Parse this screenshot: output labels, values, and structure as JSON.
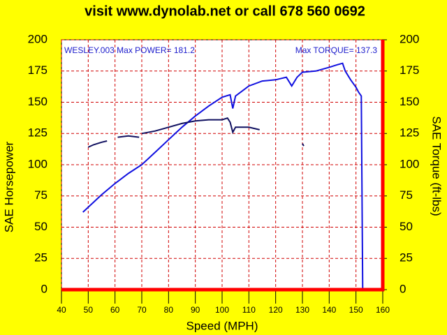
{
  "chart_data": {
    "type": "line",
    "title": "visit www.dynolab.net or call   678 560 0692",
    "annotations": [
      "WESLEY.003  Max POWER= 181.2",
      "Max TORQUE= 137.3"
    ],
    "x_label": "Speed (MPH)",
    "y_label": "SAE Horsepower",
    "y2_label": "SAE Torque (ft-lbs)",
    "xlim": [
      40,
      160
    ],
    "xticks": [
      40,
      50,
      60,
      70,
      80,
      90,
      100,
      110,
      120,
      130,
      140,
      150,
      160
    ],
    "ylim": [
      0,
      200
    ],
    "yticks": [
      0,
      25,
      50,
      75,
      100,
      125,
      150,
      175,
      200
    ],
    "y2lim": [
      0,
      200
    ],
    "y2ticks": [
      0,
      25,
      50,
      75,
      100,
      125,
      150,
      175,
      200
    ],
    "grid": true,
    "series": [
      {
        "name": "Power",
        "color": "#1010e0",
        "x": [
          48,
          55,
          60,
          65,
          70,
          75,
          80,
          85,
          90,
          95,
          100,
          103,
          104,
          105,
          110,
          115,
          120,
          124,
          126,
          128,
          130,
          135,
          140,
          143,
          145,
          146,
          148,
          150,
          151,
          152,
          152.5
        ],
        "values": [
          62,
          76,
          85,
          93,
          100,
          110,
          120,
          130,
          139,
          147,
          154,
          156,
          145,
          155,
          163,
          167,
          168,
          170,
          163,
          170,
          174,
          175,
          178,
          180,
          181.2,
          175,
          168,
          162,
          158,
          155,
          0
        ]
      },
      {
        "name": "Torque",
        "color": "#101060",
        "axis": "y2",
        "x": [
          50,
          52,
          55,
          57,
          58,
          61,
          65,
          69,
          69.5,
          70,
          75,
          80,
          85,
          90,
          95,
          100,
          102,
          103,
          104,
          105,
          110,
          114,
          120,
          130,
          130.5
        ],
        "values": [
          114,
          116,
          118,
          119,
          null,
          122,
          123,
          122,
          null,
          125,
          127,
          130,
          133,
          135,
          136,
          136,
          137.3,
          134,
          126,
          130,
          130,
          128,
          null,
          117,
          115
        ]
      }
    ]
  }
}
